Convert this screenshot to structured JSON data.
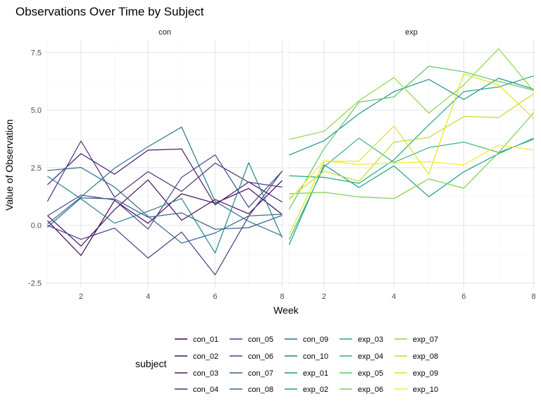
{
  "chart_data": {
    "type": "line",
    "title": "Observations Over Time by Subject",
    "xlabel": "Week",
    "ylabel": "Value of Observation",
    "facets": [
      "con",
      "exp"
    ],
    "x": [
      1,
      2,
      3,
      4,
      5,
      6,
      7,
      8
    ],
    "xticks": [
      2,
      4,
      6,
      8
    ],
    "xlim": [
      0.95,
      8.05
    ],
    "ylim": [
      -2.7,
      8.0
    ],
    "yticks": [
      -2.5,
      0.0,
      2.5,
      5.0,
      7.5
    ],
    "ytick_labels": [
      "-2.5",
      "0.0",
      "2.5",
      "5.0",
      "7.5"
    ],
    "grid": true,
    "legend": {
      "title": "subject",
      "position": "bottom"
    },
    "series": [
      {
        "name": "con_01",
        "facet": "con",
        "color": "#440154",
        "values": [
          0.2,
          -1.31,
          1.08,
          0.09,
          1.37,
          0.96,
          1.6,
          0.47
        ]
      },
      {
        "name": "con_02",
        "facet": "con",
        "color": "#470E61",
        "values": [
          0.42,
          -0.9,
          0.68,
          1.97,
          0.22,
          1.12,
          0.5,
          1.94
        ]
      },
      {
        "name": "con_03",
        "facet": "con",
        "color": "#481B6D",
        "values": [
          1.76,
          3.11,
          2.22,
          3.26,
          3.31,
          0.89,
          1.88,
          1.01
        ]
      },
      {
        "name": "con_04",
        "facet": "con",
        "color": "#46327E",
        "values": [
          1.04,
          3.66,
          1.22,
          2.33,
          1.47,
          2.7,
          1.87,
          1.66
        ]
      },
      {
        "name": "con_05",
        "facet": "con",
        "color": "#433E85",
        "values": [
          0.0,
          -0.61,
          -0.12,
          -1.42,
          -0.29,
          -2.15,
          0.39,
          2.36
        ]
      },
      {
        "name": "con_06",
        "facet": "con",
        "color": "#3E4A89",
        "values": [
          0.41,
          1.31,
          1.1,
          -0.16,
          2.08,
          3.06,
          0.78,
          2.35
        ]
      },
      {
        "name": "con_07",
        "facet": "con",
        "color": "#38598C",
        "values": [
          -0.08,
          1.19,
          1.15,
          0.35,
          0.54,
          -0.17,
          -0.1,
          0.43
        ]
      },
      {
        "name": "con_08",
        "facet": "con",
        "color": "#31688E",
        "values": [
          2.38,
          2.51,
          1.66,
          0.39,
          -0.77,
          -0.33,
          0.41,
          0.48
        ]
      },
      {
        "name": "con_09",
        "facet": "con",
        "color": "#2C728E",
        "values": [
          0.05,
          1.23,
          2.48,
          3.41,
          4.26,
          1.04,
          0.17,
          -0.46
        ]
      },
      {
        "name": "con_10",
        "facet": "con",
        "color": "#26828E",
        "values": [
          2.13,
          1.15,
          0.09,
          0.61,
          1.16,
          -1.2,
          2.72,
          -0.54
        ]
      },
      {
        "name": "exp_01",
        "facet": "exp",
        "color": "#21908C",
        "values": [
          3.05,
          3.67,
          4.84,
          5.8,
          6.33,
          5.46,
          6.38,
          5.91
        ]
      },
      {
        "name": "exp_02",
        "facet": "exp",
        "color": "#1F9A8A",
        "values": [
          -0.84,
          2.63,
          1.64,
          2.58,
          1.24,
          2.32,
          3.11,
          3.78
        ]
      },
      {
        "name": "exp_03",
        "facet": "exp",
        "color": "#22A884",
        "values": [
          2.15,
          2.08,
          1.82,
          2.84,
          4.36,
          5.8,
          6.0,
          6.48
        ]
      },
      {
        "name": "exp_04",
        "facet": "exp",
        "color": "#35B779",
        "values": [
          -0.62,
          2.54,
          3.78,
          2.73,
          3.37,
          3.61,
          3.16,
          3.73
        ]
      },
      {
        "name": "exp_05",
        "facet": "exp",
        "color": "#5DC863",
        "values": [
          0.7,
          3.33,
          5.34,
          5.57,
          6.9,
          6.66,
          6.24,
          5.86
        ]
      },
      {
        "name": "exp_06",
        "facet": "exp",
        "color": "#7AD151",
        "values": [
          1.37,
          1.43,
          1.23,
          1.16,
          2.01,
          1.61,
          3.16,
          4.88
        ]
      },
      {
        "name": "exp_07",
        "facet": "exp",
        "color": "#8FD744",
        "values": [
          3.73,
          4.08,
          5.4,
          6.41,
          4.87,
          6.09,
          7.66,
          5.83
        ]
      },
      {
        "name": "exp_08",
        "facet": "exp",
        "color": "#BDDF26",
        "values": [
          1.18,
          2.35,
          1.91,
          3.61,
          3.81,
          4.72,
          4.68,
          5.7
        ]
      },
      {
        "name": "exp_09",
        "facet": "exp",
        "color": "#E3E418",
        "values": [
          -0.4,
          2.78,
          2.78,
          4.31,
          2.22,
          6.57,
          6.09,
          4.64
        ]
      },
      {
        "name": "exp_10",
        "facet": "exp",
        "color": "#FDE725",
        "values": [
          1.09,
          2.8,
          2.64,
          2.7,
          2.76,
          2.62,
          3.48,
          3.27
        ]
      }
    ]
  }
}
